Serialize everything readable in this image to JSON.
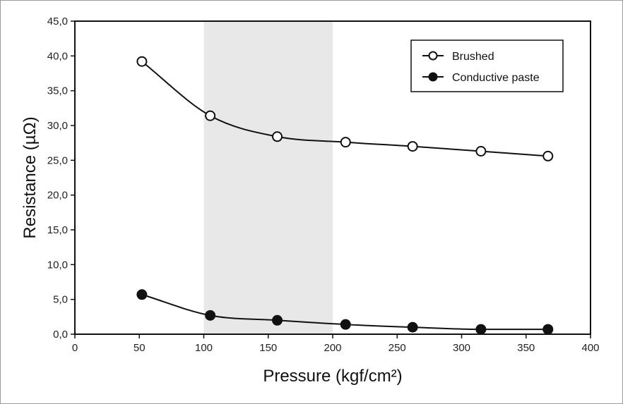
{
  "chart_data": {
    "type": "line",
    "xlabel": "Pressure (kgf/cm²)",
    "ylabel": "Resistance (µΩ)",
    "xlim": [
      0,
      400
    ],
    "ylim": [
      0,
      45
    ],
    "xticks": [
      0,
      50,
      100,
      150,
      200,
      250,
      300,
      350,
      400
    ],
    "yticks": [
      0,
      5,
      10,
      15,
      20,
      25,
      30,
      35,
      40,
      45
    ],
    "xtick_labels": [
      "0",
      "50",
      "100",
      "150",
      "200",
      "250",
      "300",
      "350",
      "400"
    ],
    "ytick_labels": [
      "0,0",
      "5,0",
      "10,0",
      "15,0",
      "20,0",
      "25,0",
      "30,0",
      "35,0",
      "40,0",
      "45,0"
    ],
    "grid": false,
    "legend_position": "top-right",
    "shaded_region": {
      "x_from": 100,
      "x_to": 200,
      "color": "#e8e8e8"
    },
    "series": [
      {
        "name": "Brushed",
        "marker": "open-circle",
        "color": "#111111",
        "x": [
          52,
          105,
          157,
          210,
          262,
          315,
          367
        ],
        "values": [
          39.2,
          31.4,
          28.4,
          27.6,
          27.0,
          26.3,
          25.6
        ]
      },
      {
        "name": "Conductive paste",
        "marker": "filled-circle",
        "color": "#111111",
        "x": [
          52,
          105,
          157,
          210,
          262,
          315,
          367
        ],
        "values": [
          5.7,
          2.7,
          2.0,
          1.4,
          1.0,
          0.7,
          0.7
        ]
      }
    ]
  }
}
